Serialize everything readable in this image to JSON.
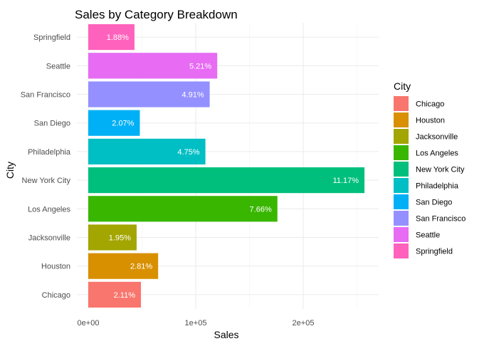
{
  "chart_data": {
    "type": "bar",
    "orientation": "horizontal",
    "title": "Sales by Category Breakdown",
    "xlabel": "Sales",
    "ylabel": "City",
    "xlim": [
      0,
      270000
    ],
    "x_ticks": [
      0,
      100000,
      200000
    ],
    "x_tick_labels": [
      "0e+00",
      "1e+05",
      "2e+05"
    ],
    "grid": true,
    "legend_position": "right",
    "legend_title": "City",
    "categories": [
      "Chicago",
      "Houston",
      "Jacksonville",
      "Los Angeles",
      "New York City",
      "Philadelphia",
      "San Diego",
      "San Francisco",
      "Seattle",
      "Springfield"
    ],
    "values": [
      49000,
      65000,
      45000,
      176000,
      257000,
      109000,
      48000,
      113000,
      120000,
      43000
    ],
    "data_labels": [
      "2.11%",
      "2.81%",
      "1.95%",
      "7.66%",
      "11.17%",
      "4.75%",
      "2.07%",
      "4.91%",
      "5.21%",
      "1.88%"
    ],
    "colors": [
      "#F8766D",
      "#D89000",
      "#A3A500",
      "#39B600",
      "#00BF7D",
      "#00BFC4",
      "#00B0F6",
      "#9590FF",
      "#E76BF3",
      "#FF62BC"
    ]
  }
}
